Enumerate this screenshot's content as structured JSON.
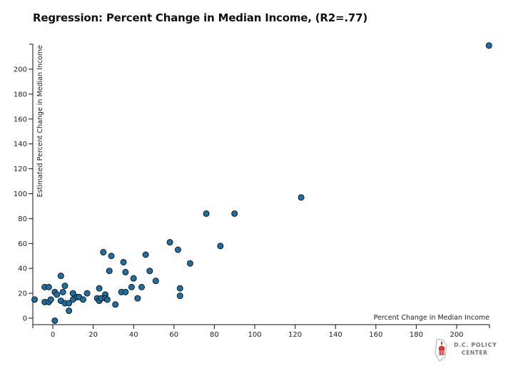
{
  "chart_data": {
    "type": "scatter",
    "title": "Regression: Percent Change in Median Income, (R2=.77)",
    "xlabel": "Percent Change in Median Income",
    "ylabel": "Estimated Percent Change in Median Income",
    "xlim": [
      -10,
      216
    ],
    "ylim": [
      -5,
      220
    ],
    "x_ticks": [
      0,
      20,
      40,
      60,
      80,
      100,
      120,
      140,
      160,
      180,
      200
    ],
    "y_ticks": [
      0,
      20,
      40,
      60,
      80,
      100,
      120,
      140,
      160,
      180,
      200
    ],
    "grid": false,
    "point_color": "#1f6fa0",
    "series": [
      {
        "points": [
          [
            -9,
            15
          ],
          [
            -4,
            25
          ],
          [
            -4,
            13
          ],
          [
            -2,
            25
          ],
          [
            -2,
            13
          ],
          [
            -1,
            15
          ],
          [
            1,
            21
          ],
          [
            2,
            19
          ],
          [
            1,
            -2
          ],
          [
            4,
            14
          ],
          [
            4,
            34
          ],
          [
            5,
            21
          ],
          [
            6,
            26
          ],
          [
            6,
            12
          ],
          [
            8,
            6
          ],
          [
            8,
            12
          ],
          [
            10,
            20
          ],
          [
            10,
            15
          ],
          [
            12,
            17
          ],
          [
            13,
            17
          ],
          [
            15,
            15
          ],
          [
            17,
            20
          ],
          [
            22,
            16
          ],
          [
            23,
            24
          ],
          [
            23,
            14
          ],
          [
            24,
            16
          ],
          [
            25,
            53
          ],
          [
            26,
            19
          ],
          [
            26,
            16
          ],
          [
            27,
            15
          ],
          [
            28,
            38
          ],
          [
            29,
            50
          ],
          [
            31,
            11
          ],
          [
            34,
            21
          ],
          [
            35,
            45
          ],
          [
            36,
            21
          ],
          [
            36,
            37
          ],
          [
            39,
            25
          ],
          [
            40,
            32
          ],
          [
            42,
            16
          ],
          [
            44,
            25
          ],
          [
            46,
            51
          ],
          [
            48,
            38
          ],
          [
            51,
            30
          ],
          [
            58,
            61
          ],
          [
            62,
            55
          ],
          [
            63,
            18
          ],
          [
            63,
            24
          ],
          [
            68,
            44
          ],
          [
            76,
            84
          ],
          [
            83,
            58
          ],
          [
            90,
            84
          ],
          [
            123,
            97
          ],
          [
            216,
            219
          ]
        ]
      }
    ]
  },
  "branding": {
    "logo_line1": "D.C. POLICY",
    "logo_line2": "CENTER"
  }
}
